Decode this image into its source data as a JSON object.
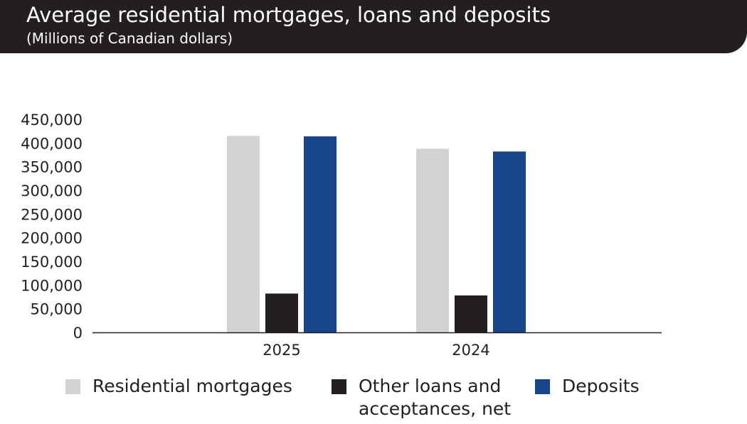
{
  "title": "Average residential mortgages, loans and deposits",
  "subtitle": "(Millions of Canadian dollars)",
  "colors": {
    "banner": "#231f20",
    "residential_mortgages": "#d1d3d4",
    "other_loans": "#231f20",
    "deposits": "#17448a"
  },
  "chart_data": {
    "type": "bar",
    "title": "Average residential mortgages, loans and deposits",
    "subtitle": "(Millions of Canadian dollars)",
    "categories": [
      "2025",
      "2024"
    ],
    "series": [
      {
        "name": "Residential mortgages",
        "values": [
          415000,
          388000
        ]
      },
      {
        "name": "Other loans and acceptances, net",
        "values": [
          82000,
          78000
        ]
      },
      {
        "name": "Deposits",
        "values": [
          414000,
          382000
        ]
      }
    ],
    "y_ticks": [
      "0",
      "50,000",
      "100,000",
      "150,000",
      "200,000",
      "250,000",
      "300,000",
      "350,000",
      "400,000",
      "450,000"
    ],
    "ylim": [
      0,
      450000
    ],
    "grid": false,
    "legend_position": "bottom"
  },
  "legend": {
    "items": [
      {
        "label": "Residential mortgages"
      },
      {
        "label": "Other loans and\nacceptances, net"
      },
      {
        "label": "Deposits"
      }
    ]
  }
}
